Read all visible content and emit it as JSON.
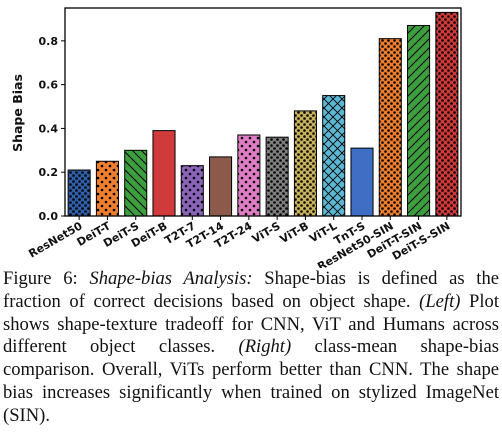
{
  "chart_data": {
    "type": "bar",
    "title": "",
    "xlabel": "",
    "ylabel": "Shape Bias",
    "ylim": [
      0,
      0.95
    ],
    "yticks": [
      "0.0",
      "0.2",
      "0.4",
      "0.6",
      "0.8"
    ],
    "grid": false,
    "categories": [
      "ResNet50",
      "DeiT-T",
      "DeiT-S",
      "DeiT-B",
      "T2T-7",
      "T2T-14",
      "T2T-24",
      "ViT-S",
      "ViT-B",
      "ViT-L",
      "TnT-S",
      "ResNet50-SIN",
      "DeiT-T-SIN",
      "DeiT-S-SIN"
    ],
    "values": [
      0.21,
      0.25,
      0.3,
      0.39,
      0.23,
      0.27,
      0.37,
      0.36,
      0.48,
      0.55,
      0.31,
      0.81,
      0.87,
      0.93
    ],
    "colors": [
      "#2f5fa8",
      "#ef7f2e",
      "#3c9e3c",
      "#d03a3a",
      "#8a62b8",
      "#8b5a4b",
      "#df7cc3",
      "#7f7f7f",
      "#c9b25c",
      "#5bb8d4",
      "#3f6ec4",
      "#ef7f2e",
      "#3c9e3c",
      "#d03a3a"
    ],
    "hatches": [
      "dots",
      "dots-sparse",
      "backslash",
      "none",
      "dots-sparse",
      "none",
      "dots-sparse",
      "dots",
      "dots",
      "cross",
      "none",
      "dots",
      "slash",
      "dots"
    ]
  },
  "caption": {
    "label": "Figure 6:",
    "title": "Shape-bias Analysis:",
    "text1": "Shape-bias is defined as the fraction of correct decisions based on object shape.",
    "left": "(Left)",
    "text2": "Plot shows shape-texture tradeoff for CNN, ViT and Humans across different object classes.",
    "right": "(Right)",
    "text3": "class-mean shape-bias comparison. Overall, ViTs perform better than CNN. The shape bias increases significantly when trained on stylized ImageNet (SIN)."
  }
}
